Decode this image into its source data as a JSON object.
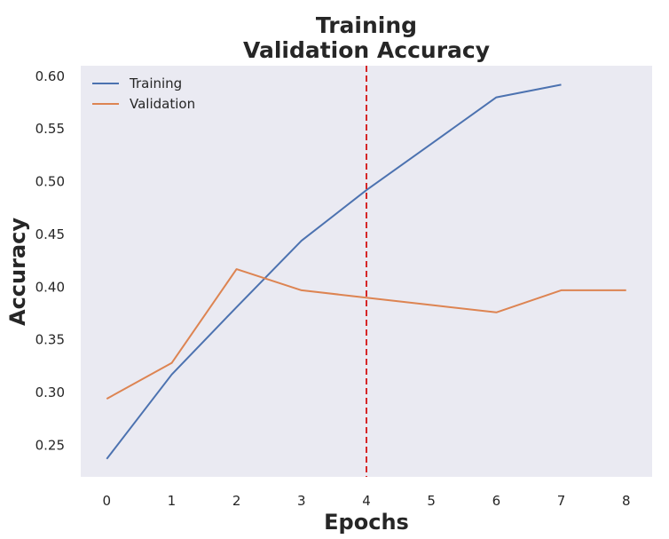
{
  "chart_data": {
    "type": "line",
    "title_lines": [
      "Training",
      "Validation Accuracy"
    ],
    "xlabel": "Epochs",
    "ylabel": "Accuracy",
    "xlim": [
      -0.4,
      8.4
    ],
    "ylim": [
      0.22,
      0.61
    ],
    "xticks": [
      0,
      1,
      2,
      3,
      4,
      5,
      6,
      7,
      8
    ],
    "yticks": [
      0.25,
      0.3,
      0.35,
      0.4,
      0.45,
      0.5,
      0.55,
      0.6
    ],
    "grid": false,
    "legend_position": "top-left",
    "vline": {
      "x": 4,
      "color": "#d62728",
      "style": "dashed"
    },
    "series": [
      {
        "name": "Training",
        "color": "#4c72b0",
        "x": [
          0,
          1,
          2,
          3,
          4,
          5,
          6,
          7
        ],
        "y": [
          0.237,
          0.317,
          0.381,
          0.444,
          0.492,
          0.536,
          0.58,
          0.592
        ]
      },
      {
        "name": "Validation",
        "color": "#dd8452",
        "x": [
          0,
          1,
          2,
          3,
          4,
          5,
          6,
          7,
          8
        ],
        "y": [
          0.294,
          0.328,
          0.417,
          0.397,
          0.39,
          0.383,
          0.376,
          0.397,
          0.397
        ]
      }
    ]
  }
}
